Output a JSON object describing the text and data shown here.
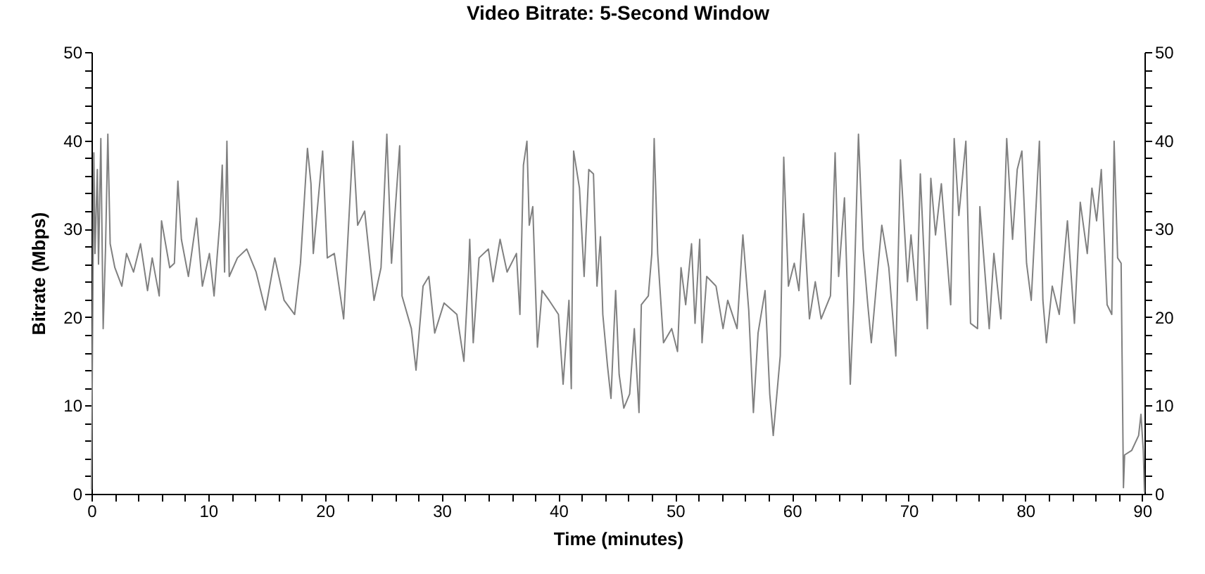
{
  "chart_data": {
    "type": "line",
    "title": "Video Bitrate: 5-Second Window",
    "xlabel": "Time (minutes)",
    "ylabel": "Bitrate (Mbps)",
    "xlim": [
      0,
      90.2
    ],
    "ylim": [
      0,
      50
    ],
    "y2lim": [
      0,
      50
    ],
    "xticks": [
      0,
      {
        "value": 2,
        "label": null
      },
      {
        "value": 4,
        "label": null
      },
      {
        "value": 6,
        "label": null
      },
      {
        "value": 8,
        "label": null
      },
      10,
      {
        "value": 12,
        "label": null
      },
      {
        "value": 14,
        "label": null
      },
      {
        "value": 16,
        "label": null
      },
      {
        "value": 18,
        "label": null
      },
      20,
      {
        "value": 22,
        "label": null
      },
      {
        "value": 24,
        "label": null
      },
      {
        "value": 26,
        "label": null
      },
      {
        "value": 28,
        "label": null
      },
      30,
      {
        "value": 32,
        "label": null
      },
      {
        "value": 34,
        "label": null
      },
      {
        "value": 36,
        "label": null
      },
      {
        "value": 38,
        "label": null
      },
      40,
      {
        "value": 42,
        "label": null
      },
      {
        "value": 44,
        "label": null
      },
      {
        "value": 46,
        "label": null
      },
      {
        "value": 48,
        "label": null
      },
      50,
      {
        "value": 52,
        "label": null
      },
      {
        "value": 54,
        "label": null
      },
      {
        "value": 56,
        "label": null
      },
      {
        "value": 58,
        "label": null
      },
      60,
      {
        "value": 62,
        "label": null
      },
      {
        "value": 64,
        "label": null
      },
      {
        "value": 66,
        "label": null
      },
      {
        "value": 68,
        "label": null
      },
      70,
      {
        "value": 72,
        "label": null
      },
      {
        "value": 74,
        "label": null
      },
      {
        "value": 76,
        "label": null
      },
      {
        "value": 78,
        "label": null
      },
      80,
      {
        "value": 82,
        "label": null
      },
      {
        "value": 84,
        "label": null
      },
      {
        "value": 86,
        "label": null
      },
      {
        "value": 88,
        "label": null
      },
      90
    ],
    "yticks": [
      0,
      {
        "value": 2,
        "label": null
      },
      {
        "value": 4,
        "label": null
      },
      {
        "value": 6,
        "label": null
      },
      {
        "value": 8,
        "label": null
      },
      10,
      {
        "value": 12,
        "label": null
      },
      {
        "value": 14,
        "label": null
      },
      {
        "value": 16,
        "label": null
      },
      {
        "value": 18,
        "label": null
      },
      20,
      {
        "value": 22,
        "label": null
      },
      {
        "value": 24,
        "label": null
      },
      {
        "value": 26,
        "label": null
      },
      {
        "value": 28,
        "label": null
      },
      30,
      {
        "value": 32,
        "label": null
      },
      {
        "value": 34,
        "label": null
      },
      {
        "value": 36,
        "label": null
      },
      {
        "value": 38,
        "label": null
      },
      40,
      {
        "value": 42,
        "label": null
      },
      {
        "value": 44,
        "label": null
      },
      {
        "value": 46,
        "label": null
      },
      {
        "value": 48,
        "label": null
      },
      50
    ],
    "y2ticks": [
      0,
      {
        "value": 2,
        "label": null
      },
      {
        "value": 4,
        "label": null
      },
      {
        "value": 6,
        "label": null
      },
      {
        "value": 8,
        "label": null
      },
      10,
      {
        "value": 12,
        "label": null
      },
      {
        "value": 14,
        "label": null
      },
      {
        "value": 16,
        "label": null
      },
      {
        "value": 18,
        "label": null
      },
      20,
      {
        "value": 22,
        "label": null
      },
      {
        "value": 24,
        "label": null
      },
      {
        "value": 26,
        "label": null
      },
      {
        "value": 28,
        "label": null
      },
      30,
      {
        "value": 32,
        "label": null
      },
      {
        "value": 34,
        "label": null
      },
      {
        "value": 36,
        "label": null
      },
      {
        "value": 38,
        "label": null
      },
      40,
      {
        "value": 42,
        "label": null
      },
      {
        "value": 44,
        "label": null
      },
      {
        "value": 46,
        "label": null
      },
      {
        "value": 48,
        "label": null
      },
      50
    ],
    "grid": false,
    "marker": "none",
    "line_style": "solid",
    "series": [
      {
        "color": "#808080",
        "x": [
          0,
          0.2,
          0.3,
          0.5,
          0.6,
          0.8,
          1.0,
          1.2,
          1.4,
          1.6,
          2.0,
          2.6,
          3.0,
          3.6,
          4.2,
          4.8,
          5.2,
          5.8,
          6.0,
          6.7,
          7.1,
          7.4,
          7.7,
          8.3,
          9.0,
          9.5,
          10.1,
          10.5,
          11.0,
          11.2,
          11.4,
          11.6,
          11.8,
          12.5,
          13.3,
          14.1,
          14.9,
          15.7,
          16.5,
          17.4,
          17.9,
          18.5,
          18.8,
          19.0,
          19.8,
          20.2,
          20.8,
          21.6,
          22.4,
          22.8,
          23.4,
          24.2,
          24.8,
          25.3,
          25.7,
          26.4,
          26.6,
          27.4,
          27.8,
          28.4,
          28.9,
          29.4,
          30.2,
          31.3,
          31.9,
          32.3,
          32.4,
          32.7,
          33.2,
          34.0,
          34.4,
          35.0,
          35.6,
          36.4,
          36.7,
          37.0,
          37.3,
          37.5,
          37.8,
          38.2,
          38.6,
          39.2,
          40.0,
          40.4,
          40.9,
          41.1,
          41.3,
          41.8,
          42.2,
          42.6,
          43.0,
          43.3,
          43.6,
          43.8,
          44.2,
          44.5,
          44.9,
          45.2,
          45.6,
          46.1,
          46.5,
          46.9,
          47.1,
          47.7,
          48.0,
          48.2,
          48.5,
          49.0,
          49.7,
          50.2,
          50.5,
          50.9,
          51.4,
          51.7,
          52.1,
          52.3,
          52.7,
          53.5,
          54.1,
          54.5,
          55.3,
          55.8,
          56.3,
          56.7,
          57.1,
          57.7,
          58.1,
          58.4,
          59.0,
          59.3,
          59.7,
          60.2,
          60.6,
          61.0,
          61.5,
          62.0,
          62.5,
          63.3,
          63.7,
          64.0,
          64.5,
          65.0,
          65.3,
          65.7,
          66.1,
          66.5,
          66.8,
          67.3,
          67.7,
          68.3,
          68.9,
          69.3,
          69.9,
          70.2,
          70.7,
          71.0,
          71.6,
          71.9,
          72.3,
          72.8,
          73.6,
          73.9,
          74.3,
          74.9,
          75.3,
          75.9,
          76.1,
          76.9,
          77.3,
          77.9,
          78.4,
          78.9,
          79.3,
          79.7,
          80.1,
          80.5,
          81.2,
          81.5,
          81.8,
          82.3,
          82.9,
          83.6,
          84.2,
          84.7,
          85.3,
          85.7,
          86.1,
          86.5,
          87.0,
          87.4,
          87.6,
          87.9,
          88.2,
          88.4,
          88.5,
          89.1,
          89.7,
          89.9,
          90.1,
          90.2
        ],
        "values": [
          0.5,
          38.6,
          27.2,
          36.7,
          26,
          40.2,
          18.7,
          27.7,
          40.7,
          28.3,
          25.6,
          23.5,
          27.2,
          25.1,
          28.3,
          23,
          26.7,
          22.4,
          30.9,
          25.6,
          26.1,
          35.4,
          28.8,
          24.6,
          31.2,
          23.5,
          27.2,
          22.4,
          30.9,
          37.2,
          25.1,
          39.9,
          24.6,
          26.7,
          27.7,
          25.1,
          20.8,
          26.7,
          21.9,
          20.3,
          26.1,
          39.1,
          35.1,
          27.2,
          38.8,
          26.7,
          27.2,
          19.8,
          39.9,
          30.4,
          32,
          21.9,
          25.6,
          40.7,
          26.1,
          39.4,
          22.4,
          18.7,
          14,
          23.5,
          24.6,
          18.2,
          21.6,
          20.3,
          15,
          25.1,
          28.8,
          17.1,
          26.7,
          27.7,
          24,
          28.8,
          25.1,
          27.2,
          20.3,
          37.2,
          39.9,
          30.4,
          32.5,
          16.6,
          23,
          21.9,
          20.3,
          12.4,
          21.9,
          11.9,
          38.8,
          34.6,
          24.6,
          36.7,
          36.2,
          23.5,
          29.1,
          20.3,
          14.5,
          10.8,
          23,
          13.5,
          9.7,
          11.3,
          18.7,
          9.2,
          21.4,
          22.4,
          27.2,
          40.2,
          27.2,
          17.1,
          18.7,
          16.1,
          25.6,
          21.4,
          28.3,
          19.3,
          28.8,
          17.1,
          24.6,
          23.5,
          18.7,
          21.9,
          18.7,
          29.3,
          20.8,
          9.2,
          18.2,
          23,
          11.3,
          6.6,
          15.6,
          38.1,
          23.5,
          26.1,
          23,
          31.7,
          19.8,
          24,
          19.8,
          22.4,
          38.6,
          24.6,
          33.5,
          12.4,
          21.9,
          40.7,
          27.7,
          21.4,
          17.1,
          24.6,
          30.4,
          25.6,
          15.6,
          37.8,
          24,
          29.3,
          21.9,
          36.2,
          18.7,
          35.7,
          29.3,
          35.1,
          21.4,
          40.2,
          31.5,
          39.9,
          19.3,
          18.7,
          32.5,
          18.7,
          27.2,
          19.8,
          40.2,
          28.8,
          36.7,
          38.8,
          26.1,
          21.9,
          39.9,
          21.9,
          17.1,
          23.5,
          20.3,
          30.9,
          19.3,
          33,
          27.2,
          34.6,
          30.9,
          36.7,
          21.4,
          20.3,
          39.9,
          26.7,
          26.1,
          0.7,
          4.4,
          4.9,
          6.6,
          9,
          4.9,
          0.2
        ]
      }
    ]
  }
}
